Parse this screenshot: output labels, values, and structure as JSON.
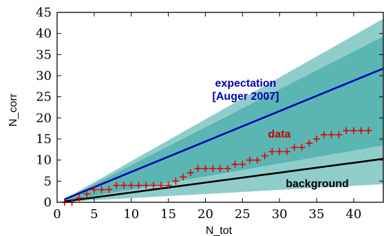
{
  "chart_data": {
    "type": "line",
    "xlabel": "N_tot",
    "ylabel": "N_corr",
    "xlim": [
      0,
      44
    ],
    "ylim": [
      0,
      45
    ],
    "xticks": [
      0,
      5,
      10,
      15,
      20,
      25,
      30,
      35,
      40
    ],
    "yticks": [
      0,
      5,
      10,
      15,
      20,
      25,
      30,
      35,
      40,
      45
    ],
    "grid": false,
    "band_colors": {
      "outer": "#8fcdcb",
      "inner": "#5ab5b3"
    },
    "bands": {
      "outer": {
        "x": [
          1,
          44
        ],
        "lower": [
          0.1,
          4.3
        ],
        "upper": [
          0.8,
          43.5
        ]
      },
      "inner": {
        "x": [
          1,
          44
        ],
        "lower": [
          0.3,
          13.5
        ],
        "upper": [
          0.7,
          39.3
        ]
      }
    },
    "series": [
      {
        "key": "expectation",
        "x": [
          1,
          44
        ],
        "y": [
          0.7,
          31.7
        ],
        "color": "#0000b4"
      },
      {
        "key": "background",
        "x": [
          1,
          44
        ],
        "y": [
          0.2,
          10.3
        ],
        "color": "#000000"
      },
      {
        "key": "data",
        "color": "#e00000",
        "marker": "plus",
        "x": [
          1,
          2,
          3,
          4,
          5,
          6,
          7,
          8,
          9,
          10,
          11,
          12,
          13,
          14,
          15,
          16,
          17,
          18,
          19,
          20,
          21,
          22,
          23,
          24,
          25,
          26,
          27,
          28,
          29,
          30,
          31,
          32,
          33,
          34,
          35,
          36,
          37,
          38,
          39,
          40,
          41,
          42
        ],
        "y": [
          0,
          0,
          1,
          2,
          3,
          3,
          3,
          4,
          4,
          4,
          4,
          4,
          4,
          4,
          4,
          5,
          6,
          7,
          8,
          8,
          8,
          8,
          8,
          9,
          9,
          10,
          10,
          11,
          12,
          12,
          12,
          13,
          13,
          14,
          15,
          16,
          16,
          16,
          17,
          17,
          17,
          17
        ]
      }
    ],
    "annotations": {
      "expectation_line1": "expectation",
      "expectation_line2": "[Auger 2007]",
      "data": "data",
      "background": "background"
    },
    "annotation_colors": {
      "expectation": "#0000b4",
      "data": "#c00000",
      "background": "#000000"
    }
  }
}
